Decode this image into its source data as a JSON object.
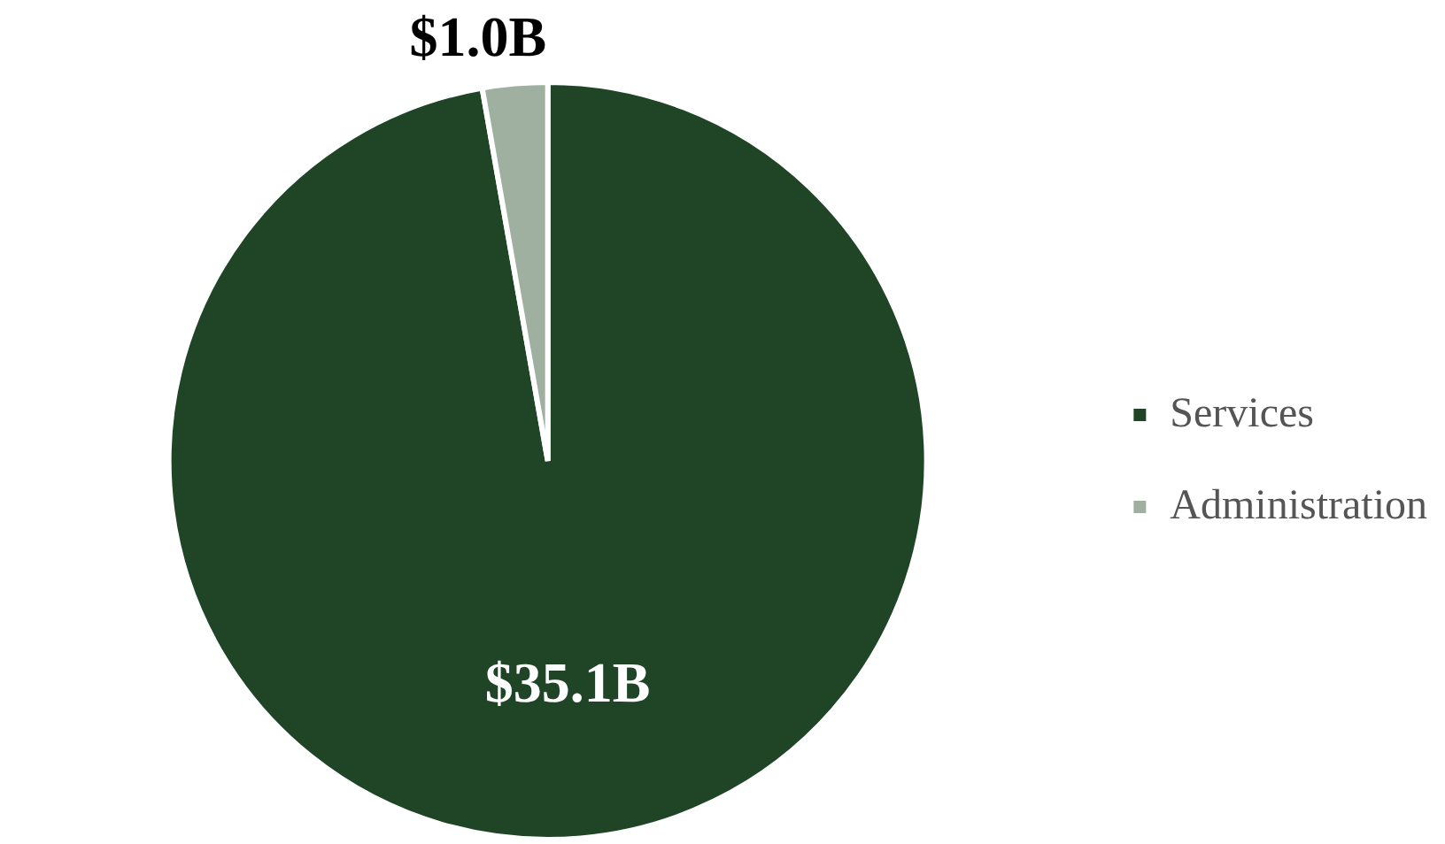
{
  "chart_data": {
    "type": "pie",
    "categories": [
      "Services",
      "Administration"
    ],
    "values": [
      35.1,
      1.0
    ],
    "colors": [
      "#1f4526",
      "#9fb0a0"
    ],
    "value_labels": [
      "$35.1B",
      "$1.0B"
    ],
    "legend": "right"
  }
}
